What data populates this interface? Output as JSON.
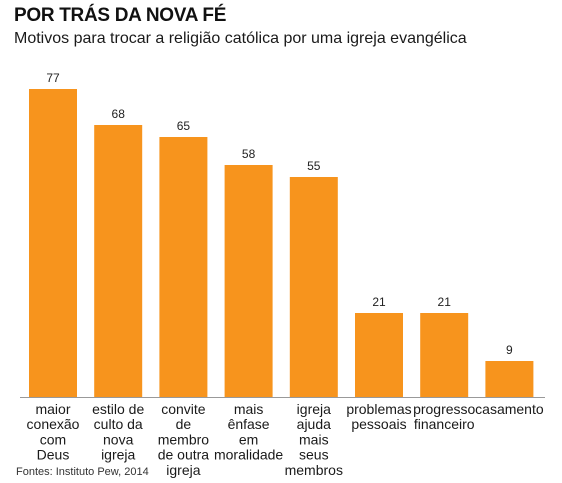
{
  "title": "POR TRÁS DA NOVA FÉ",
  "subtitle": "Motivos para trocar a religião católica por uma igreja evangélica",
  "source": "Fontes: Instituto Pew, 2014",
  "colors": {
    "bar": "#f7941d",
    "axis": "#999999"
  },
  "chart_data": {
    "type": "bar",
    "categories": [
      [
        "maior",
        "conexão",
        "com",
        "Deus"
      ],
      [
        "estilo de",
        "culto da",
        "nova",
        "igreja"
      ],
      [
        "convite",
        "de",
        "membro",
        "de outra",
        "igreja"
      ],
      [
        "mais",
        "ênfase",
        "em",
        "moralidade"
      ],
      [
        "igreja",
        "ajuda",
        "mais",
        "seus",
        "membros"
      ],
      [
        "problemas",
        "pessoais"
      ],
      [
        "progresso",
        "financeiro"
      ],
      [
        "casamento"
      ]
    ],
    "values": [
      77,
      68,
      65,
      58,
      55,
      21,
      21,
      9
    ],
    "data_labels": [
      "77",
      "68",
      "65",
      "58",
      "55",
      "21",
      "21",
      "9"
    ],
    "ylim": [
      0,
      77
    ],
    "grid": false,
    "legend": "none"
  }
}
